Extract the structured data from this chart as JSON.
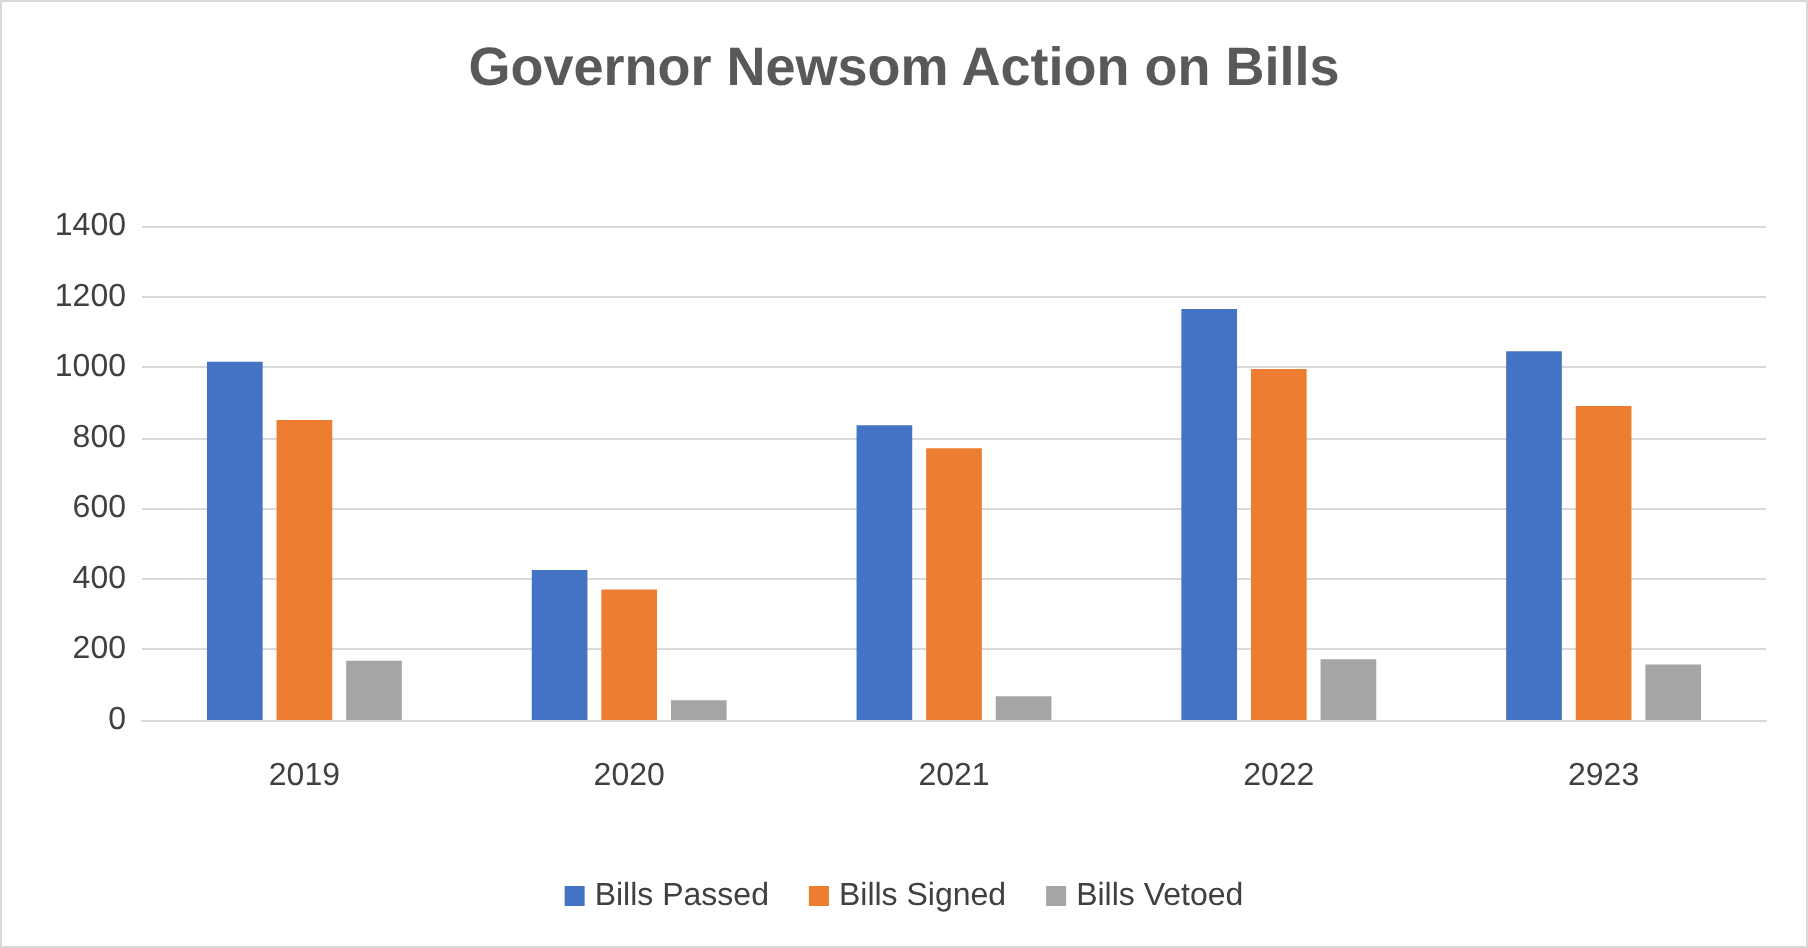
{
  "chart_data": {
    "type": "bar",
    "title": "Governor Newsom Action on Bills",
    "categories": [
      "2019",
      "2020",
      "2021",
      "2022",
      "2923"
    ],
    "series": [
      {
        "name": "Bills Passed",
        "color": "#4472c4",
        "values": [
          1015,
          425,
          835,
          1165,
          1045
        ]
      },
      {
        "name": "Bills Signed",
        "color": "#ed7d31",
        "values": [
          850,
          370,
          770,
          995,
          890
        ]
      },
      {
        "name": "Bills Vetoed",
        "color": "#a5a5a5",
        "values": [
          168,
          56,
          67,
          172,
          157
        ]
      }
    ],
    "ylim": [
      0,
      1400
    ],
    "yticks": [
      0,
      200,
      400,
      600,
      800,
      1000,
      1200,
      1400
    ],
    "grid": "y",
    "legend": "bottom"
  }
}
